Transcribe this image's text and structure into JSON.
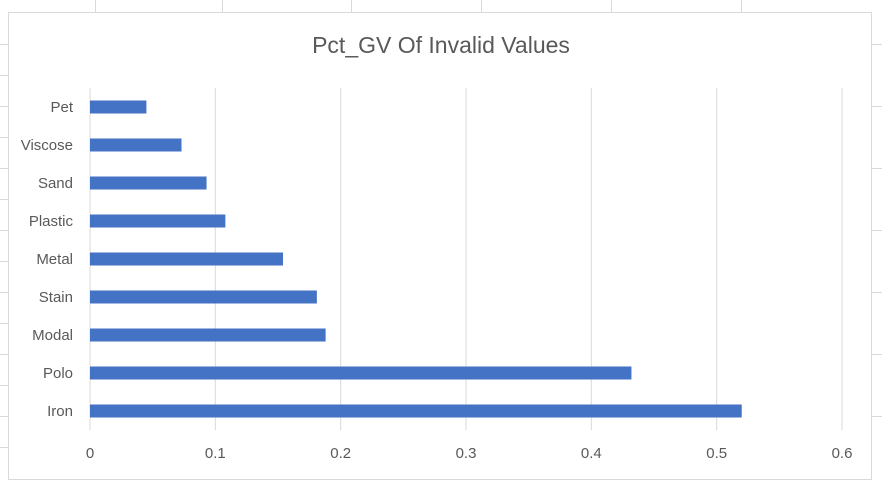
{
  "chart_data": {
    "type": "bar",
    "orientation": "horizontal",
    "title": "Pct_GV Of Invalid Values",
    "categories": [
      "Pet",
      "Viscose",
      "Sand",
      "Plastic",
      "Metal",
      "Stain",
      "Modal",
      "Polo",
      "Iron"
    ],
    "values": [
      0.045,
      0.073,
      0.093,
      0.108,
      0.154,
      0.181,
      0.188,
      0.432,
      0.52
    ],
    "xlim": [
      0,
      0.6
    ],
    "xticks": [
      "0",
      "0.1",
      "0.2",
      "0.3",
      "0.4",
      "0.5",
      "0.6"
    ],
    "xlabel": "",
    "ylabel": "",
    "grid": "vertical",
    "legend": "none",
    "bar_color": "#4472c4",
    "grid_color": "#d9d9d9"
  }
}
